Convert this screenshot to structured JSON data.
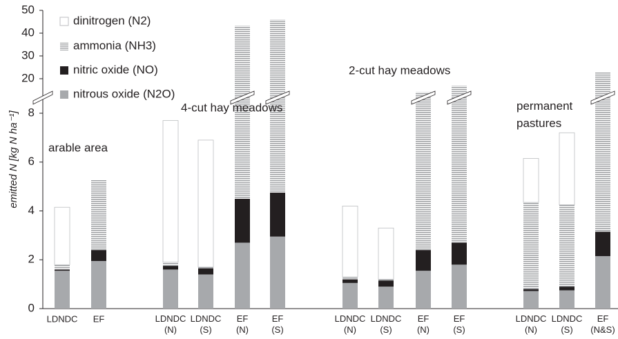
{
  "chart_data": {
    "type": "stacked_bar",
    "y_label": "emitted N [kg N ha⁻¹]",
    "categories": [
      "LDNDC",
      "EF",
      "LDNDC\n(N)",
      "LDNDC\n(S)",
      "EF\n(N)",
      "EF\n(S)",
      "LDNDC\n(N)",
      "LDNDC\n(S)",
      "EF\n(N)",
      "EF\n(S)",
      "LDNDC\n(N)",
      "LDNDC\n(S)",
      "EF\n(N&S)"
    ],
    "series": [
      {
        "name": "nitrous oxide (N2O)",
        "color": "#a7a9ac",
        "values": [
          1.55,
          1.95,
          1.6,
          1.4,
          2.7,
          2.95,
          1.05,
          0.9,
          1.55,
          1.8,
          0.72,
          0.75,
          2.15
        ]
      },
      {
        "name": "nitric oxide (NO)",
        "color": "#231f20",
        "values": [
          0.05,
          0.45,
          0.15,
          0.25,
          1.8,
          1.8,
          0.15,
          0.25,
          0.85,
          0.9,
          0.08,
          0.15,
          1.0
        ]
      },
      {
        "name": "ammonia (NH3)",
        "color": "#9d9fa2",
        "hatch": "horizontal",
        "values": [
          0.2,
          2.9,
          0.15,
          0.05,
          38.8,
          41.25,
          0.1,
          0.05,
          13.0,
          14.9,
          3.55,
          3.35,
          19.55
        ]
      },
      {
        "name": "dinitrogen (N2)",
        "color": "#ffffff",
        "values": [
          2.35,
          0,
          5.8,
          5.2,
          0,
          0,
          2.9,
          2.1,
          0,
          0,
          1.8,
          2.95,
          0
        ]
      }
    ],
    "annotations": [
      "arable area",
      "4-cut hay meadows",
      "2-cut hay meadows",
      "permanent\npastures"
    ],
    "ylim": [
      0,
      50
    ],
    "ybreak": [
      8,
      20
    ],
    "yticks": [
      0,
      2,
      4,
      6,
      8,
      20,
      30,
      40,
      50
    ],
    "legend": "upper left",
    "grid": false
  }
}
